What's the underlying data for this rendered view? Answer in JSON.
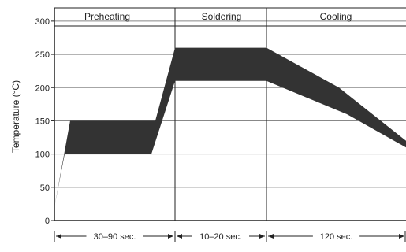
{
  "chart_data": {
    "type": "area",
    "ylabel": "Temperature (°C)",
    "yticks": [
      0,
      50,
      100,
      150,
      200,
      250,
      300
    ],
    "ylim": [
      0,
      320
    ],
    "grid": true,
    "phases": [
      {
        "label": "Preheating",
        "duration": "30–90 sec."
      },
      {
        "label": "Soldering",
        "duration": "10–20 sec."
      },
      {
        "label": "Cooling",
        "duration": "120 sec."
      }
    ],
    "band": {
      "upper_temp": [
        20,
        150,
        150,
        260,
        260,
        200,
        120
      ],
      "lower_temp": [
        20,
        100,
        100,
        210,
        210,
        160,
        110
      ]
    },
    "color": "#333333"
  }
}
